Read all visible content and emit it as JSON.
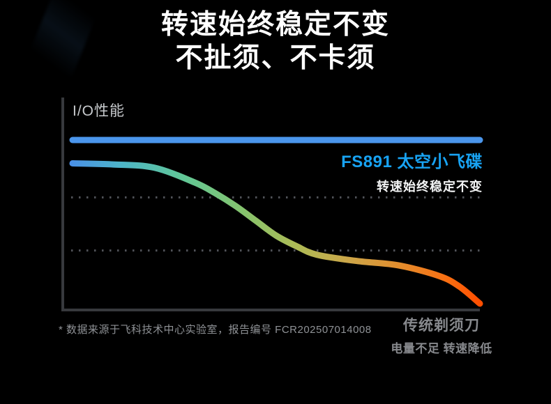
{
  "page": {
    "background_color": "#000000"
  },
  "header": {
    "title_line1": "转速始终稳定不变",
    "title_line2": "不扯须、不卡须"
  },
  "chart_data": {
    "type": "line",
    "title": "转速始终稳定不变 不扯须、不卡须",
    "ylabel": "I/O性能",
    "xlabel": "",
    "ylim": [
      0,
      100
    ],
    "x_axis_ticks": [],
    "y_axis_ticks": [],
    "gridline_values": [
      53,
      28
    ],
    "gridline_style": "dashed",
    "x_percent": [
      0,
      10,
      20,
      30,
      35,
      40,
      45,
      50,
      55,
      60,
      70,
      80,
      90,
      95,
      100
    ],
    "series": [
      {
        "name": "FS891 太空小飞碟",
        "annotation": "转速始终稳定不变",
        "label_color": "#18A3F3",
        "line_color": "#4B96EC",
        "values": [
          80,
          80,
          80,
          80,
          80,
          80,
          80,
          80,
          80,
          80,
          80,
          80,
          80,
          80,
          80
        ]
      },
      {
        "name": "传统剃须刀",
        "annotation": "电量不足 转速降低",
        "label_color": "#87898d",
        "gradient_stops": [
          {
            "offset": 0.0,
            "color": "#4A90E8"
          },
          {
            "offset": 0.13,
            "color": "#4DB6C6"
          },
          {
            "offset": 0.28,
            "color": "#62C796"
          },
          {
            "offset": 0.42,
            "color": "#85C46E"
          },
          {
            "offset": 0.55,
            "color": "#ADBB56"
          },
          {
            "offset": 0.68,
            "color": "#CCA649"
          },
          {
            "offset": 0.8,
            "color": "#E28E2E"
          },
          {
            "offset": 0.92,
            "color": "#F96F12"
          },
          {
            "offset": 1.0,
            "color": "#FF4E00"
          }
        ],
        "values": [
          69,
          68.5,
          67,
          60,
          55,
          49,
          42,
          35,
          30,
          26,
          23,
          21,
          16,
          11,
          3
        ]
      }
    ],
    "axis_color": "#37393d",
    "gridline_color": "#515359"
  },
  "footnote": "* 数据来源于飞科技术中心实验室，报告编号 FCR202507014008"
}
